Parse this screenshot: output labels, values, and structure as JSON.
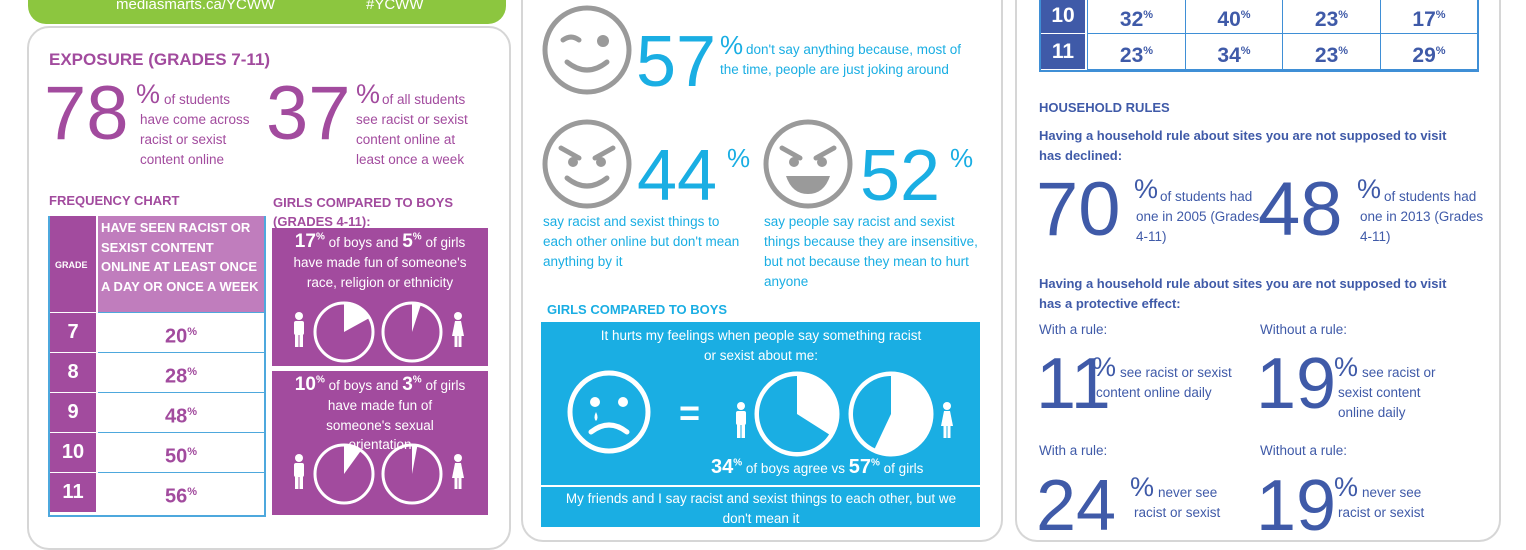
{
  "col1": {
    "banner_left": "mediasmarts.ca/YCWW",
    "banner_right": "#YCWW",
    "title": "EXPOSURE (GRADES 7-11)",
    "stat1": {
      "value": "78",
      "unit": "%",
      "text": "of students have come across racist or sexist content online"
    },
    "stat2": {
      "value": "37",
      "unit": "%",
      "text": "of all students see racist or sexist content online at least once a week"
    },
    "freq_title": "FREQUENCY CHART",
    "freq_grade_label": "GRADE",
    "freq_col_label": "HAVE SEEN RACIST OR SEXIST CONTENT ONLINE AT LEAST ONCE A DAY OR ONCE A WEEK",
    "freq_rows": [
      {
        "grade": "7",
        "value": "20",
        "unit": "%"
      },
      {
        "grade": "8",
        "value": "28",
        "unit": "%"
      },
      {
        "grade": "9",
        "value": "48",
        "unit": "%"
      },
      {
        "grade": "10",
        "value": "50",
        "unit": "%"
      },
      {
        "grade": "11",
        "value": "56",
        "unit": "%"
      }
    ],
    "gvb_title": "GIRLS COMPARED TO BOYS (GRADES 4-11):",
    "gvb1": {
      "boys": "17",
      "girls": "5",
      "unit": "%",
      "mid1": "of boys and",
      "mid2": "of girls",
      "text": "have made fun of someone's race, religion or ethnicity",
      "boys_fraction": 0.17,
      "girls_fraction": 0.05
    },
    "gvb2": {
      "boys": "10",
      "girls": "3",
      "unit": "%",
      "mid1": "of boys and",
      "mid2": "of girls",
      "text": "have made fun of someone's sexual orientation",
      "boys_fraction": 0.1,
      "girls_fraction": 0.03
    }
  },
  "col2": {
    "s57": {
      "value": "57",
      "unit": "%",
      "text": "don't say anything because, most of the time, people are just joking around"
    },
    "s44": {
      "value": "44",
      "unit": "%",
      "text": "say racist and sexist things to each other online but don't mean anything by it"
    },
    "s52": {
      "value": "52",
      "unit": "%",
      "text": "say people say racist and sexist things because they are insensitive, but not because they mean to hurt anyone"
    },
    "gvb_title": "GIRLS COMPARED TO BOYS",
    "box1_text": "It hurts my feelings when people say something racist or sexist about me:",
    "equals": "=",
    "box1_boys": "34",
    "box1_girls": "57",
    "box1_unit": "%",
    "box1_mid": "of boys agree vs",
    "box1_end": "of girls",
    "box1_boys_fraction": 0.34,
    "box1_girls_fraction": 0.57,
    "box2_text": "My friends and I say racist and sexist things to each other, but we don't mean it"
  },
  "col3": {
    "table_rows": [
      {
        "grade": "10",
        "cells": [
          "32",
          "40",
          "23",
          "17"
        ]
      },
      {
        "grade": "11",
        "cells": [
          "23",
          "34",
          "23",
          "29"
        ]
      }
    ],
    "table_unit": "%",
    "rules_title": "HOUSEHOLD RULES",
    "rules_sub1": "Having a household rule about sites you are not supposed to visit has declined:",
    "s70": {
      "value": "70",
      "unit": "%",
      "text": "of students had one in 2005 (Grades 4-11)"
    },
    "s48": {
      "value": "48",
      "unit": "%",
      "text": "of students had one in 2013 (Grades 4-11)"
    },
    "rules_sub2": "Having a household rule about sites you are not supposed to visit has a protective effect:",
    "with_rule": "With a rule:",
    "without_rule": "Without a rule:",
    "s11": {
      "value": "11",
      "unit": "%",
      "text": "see racist or sexist content online daily"
    },
    "s19a": {
      "value": "19",
      "unit": "%",
      "text": "see racist or sexist content online daily"
    },
    "s24": {
      "value": "24",
      "unit": "%",
      "text": "never see racist or sexist"
    },
    "s19b": {
      "value": "19",
      "unit": "%",
      "text": "never see racist or sexist"
    }
  },
  "colors": {
    "purple": "#a24b9e",
    "purple_light": "#c07dbd",
    "blue": "#1aaee3",
    "navy": "#3f5aa8",
    "green": "#8cc63f",
    "gray_face": "#9a9a9a"
  }
}
